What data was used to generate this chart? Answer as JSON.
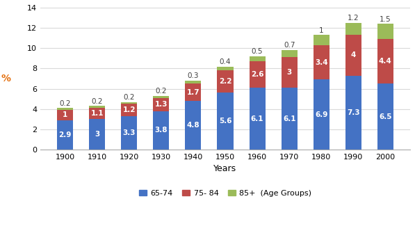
{
  "years": [
    "1900",
    "1910",
    "1920",
    "1930",
    "1940",
    "1950",
    "1960",
    "1970",
    "1980",
    "1990",
    "2000"
  ],
  "age_65_74": [
    2.9,
    3.0,
    3.3,
    3.8,
    4.8,
    5.6,
    6.1,
    6.1,
    6.9,
    7.3,
    6.5
  ],
  "age_65_74_labels": [
    "2.9",
    "3",
    "3.3",
    "3.8",
    "4.8",
    "5.6",
    "6.1",
    "6.1",
    "6.9",
    "7.3",
    "6.5"
  ],
  "age_75_84": [
    1.0,
    1.1,
    1.2,
    1.3,
    1.7,
    2.2,
    2.6,
    3.0,
    3.4,
    4.0,
    4.4
  ],
  "age_75_84_labels": [
    "1",
    "1.1",
    "1.2",
    "1.3",
    "1.7",
    "2.2",
    "2.6",
    "3",
    "3.4",
    "4",
    "4.4"
  ],
  "age_85p": [
    0.2,
    0.2,
    0.2,
    0.2,
    0.3,
    0.4,
    0.5,
    0.7,
    1.0,
    1.2,
    1.5
  ],
  "age_85p_labels": [
    "0.2",
    "0.2",
    "0.2",
    "0.2",
    "0.3",
    "0.4",
    "0.5",
    "0.7",
    "1",
    "1.2",
    "1.5"
  ],
  "color_65_74": "#4472C4",
  "color_75_84": "#BE4B48",
  "color_85p": "#9BBB59",
  "xlabel": "Years",
  "ylabel": "%",
  "ylabel_color": "#E36C09",
  "ylim": [
    0,
    14
  ],
  "yticks": [
    0,
    2,
    4,
    6,
    8,
    10,
    12,
    14
  ],
  "legend_labels": [
    "65-74",
    "75- 84",
    "85+  (Age Groups)"
  ],
  "bar_width": 0.5,
  "background_color": "#FFFFFF",
  "plot_bg_color": "#FFFFFF",
  "grid_color": "#D9D9D9"
}
